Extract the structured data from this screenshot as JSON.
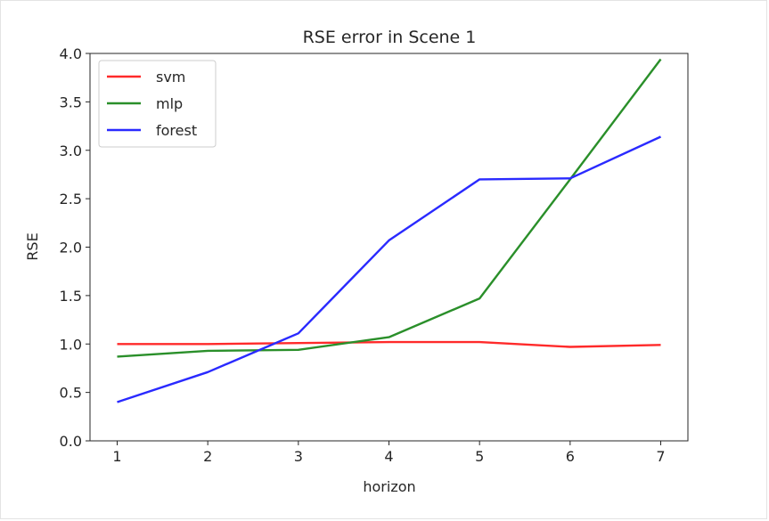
{
  "chart_data": {
    "type": "line",
    "title": "RSE error in Scene 1",
    "xlabel": "horizon",
    "ylabel": "RSE",
    "x": [
      1,
      2,
      3,
      4,
      5,
      6,
      7
    ],
    "xlim": [
      0.7,
      7.3
    ],
    "ylim": [
      0.0,
      4.0
    ],
    "xticks": [
      "1",
      "2",
      "3",
      "4",
      "5",
      "6",
      "7"
    ],
    "yticks": [
      "0.0",
      "0.5",
      "1.0",
      "1.5",
      "2.0",
      "2.5",
      "3.0",
      "3.5",
      "4.0"
    ],
    "grid": false,
    "legend_position": "top-left",
    "series": [
      {
        "name": "svm",
        "color": "#ff2a2a",
        "values": [
          1.0,
          1.0,
          1.01,
          1.02,
          1.02,
          0.97,
          0.99
        ]
      },
      {
        "name": "mlp",
        "color": "#2a8f2a",
        "values": [
          0.87,
          0.93,
          0.94,
          1.07,
          1.47,
          2.7,
          3.94
        ]
      },
      {
        "name": "forest",
        "color": "#2a2aff",
        "values": [
          0.4,
          0.71,
          1.11,
          2.07,
          2.7,
          2.71,
          3.14
        ]
      }
    ]
  }
}
